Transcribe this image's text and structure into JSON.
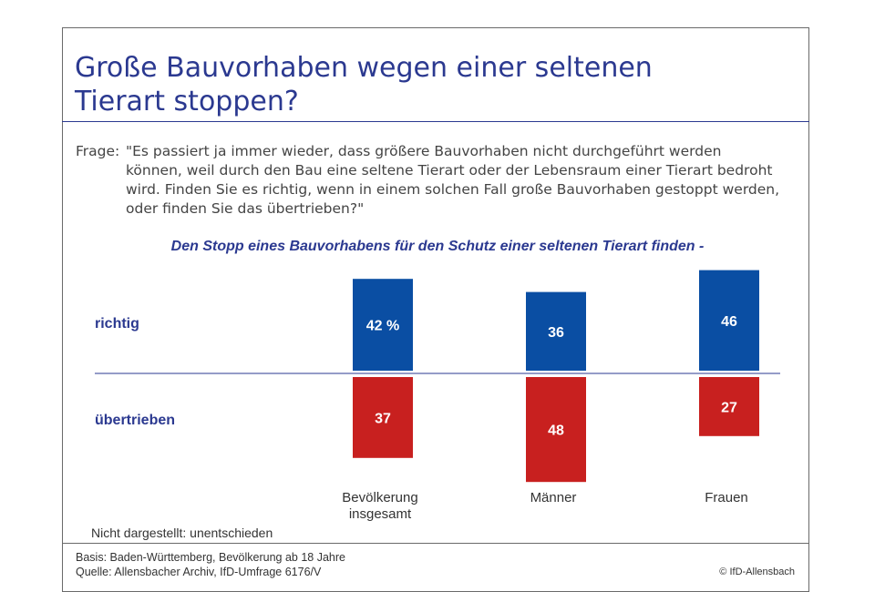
{
  "header": {
    "title_line1": "Große Bauvorhaben wegen einer seltenen",
    "title_line2": "Tierart stoppen?"
  },
  "question": {
    "label": "Frage:",
    "text": "\"Es passiert ja immer wieder, dass größere Bauvorhaben nicht durchgeführt werden können, weil durch den Bau eine seltene Tierart oder der Lebensraum einer Tierart bedroht wird. Finden Sie es richtig, wenn in einem solchen Fall große Bauvorhaben gestoppt werden, oder finden Sie das übertrieben?\""
  },
  "chart_data": {
    "type": "bar",
    "title": "Den Stopp eines Bauvorhabens für den Schutz einer seltenen Tierart finden -",
    "categories": [
      "Bevölkerung insgesamt",
      "Männer",
      "Frauen"
    ],
    "series": [
      {
        "name": "richtig",
        "values": [
          42,
          36,
          46
        ],
        "labels": [
          "42 %",
          "36",
          "46"
        ],
        "color": "#0a4ea3"
      },
      {
        "name": "übertrieben",
        "values": [
          37,
          48,
          27
        ],
        "labels": [
          "37",
          "48",
          "27"
        ],
        "color": "#c8201f"
      }
    ],
    "layout": "diverging",
    "grid": false
  },
  "footnote": "Nicht dargestellt: unentschieden",
  "footer": {
    "basis": "Basis: Baden-Württemberg, Bevölkerung ab 18 Jahre",
    "source": "Quelle: Allensbacher Archiv, IfD-Umfrage 6176/V",
    "copyright": "© IfD-Allensbach"
  }
}
